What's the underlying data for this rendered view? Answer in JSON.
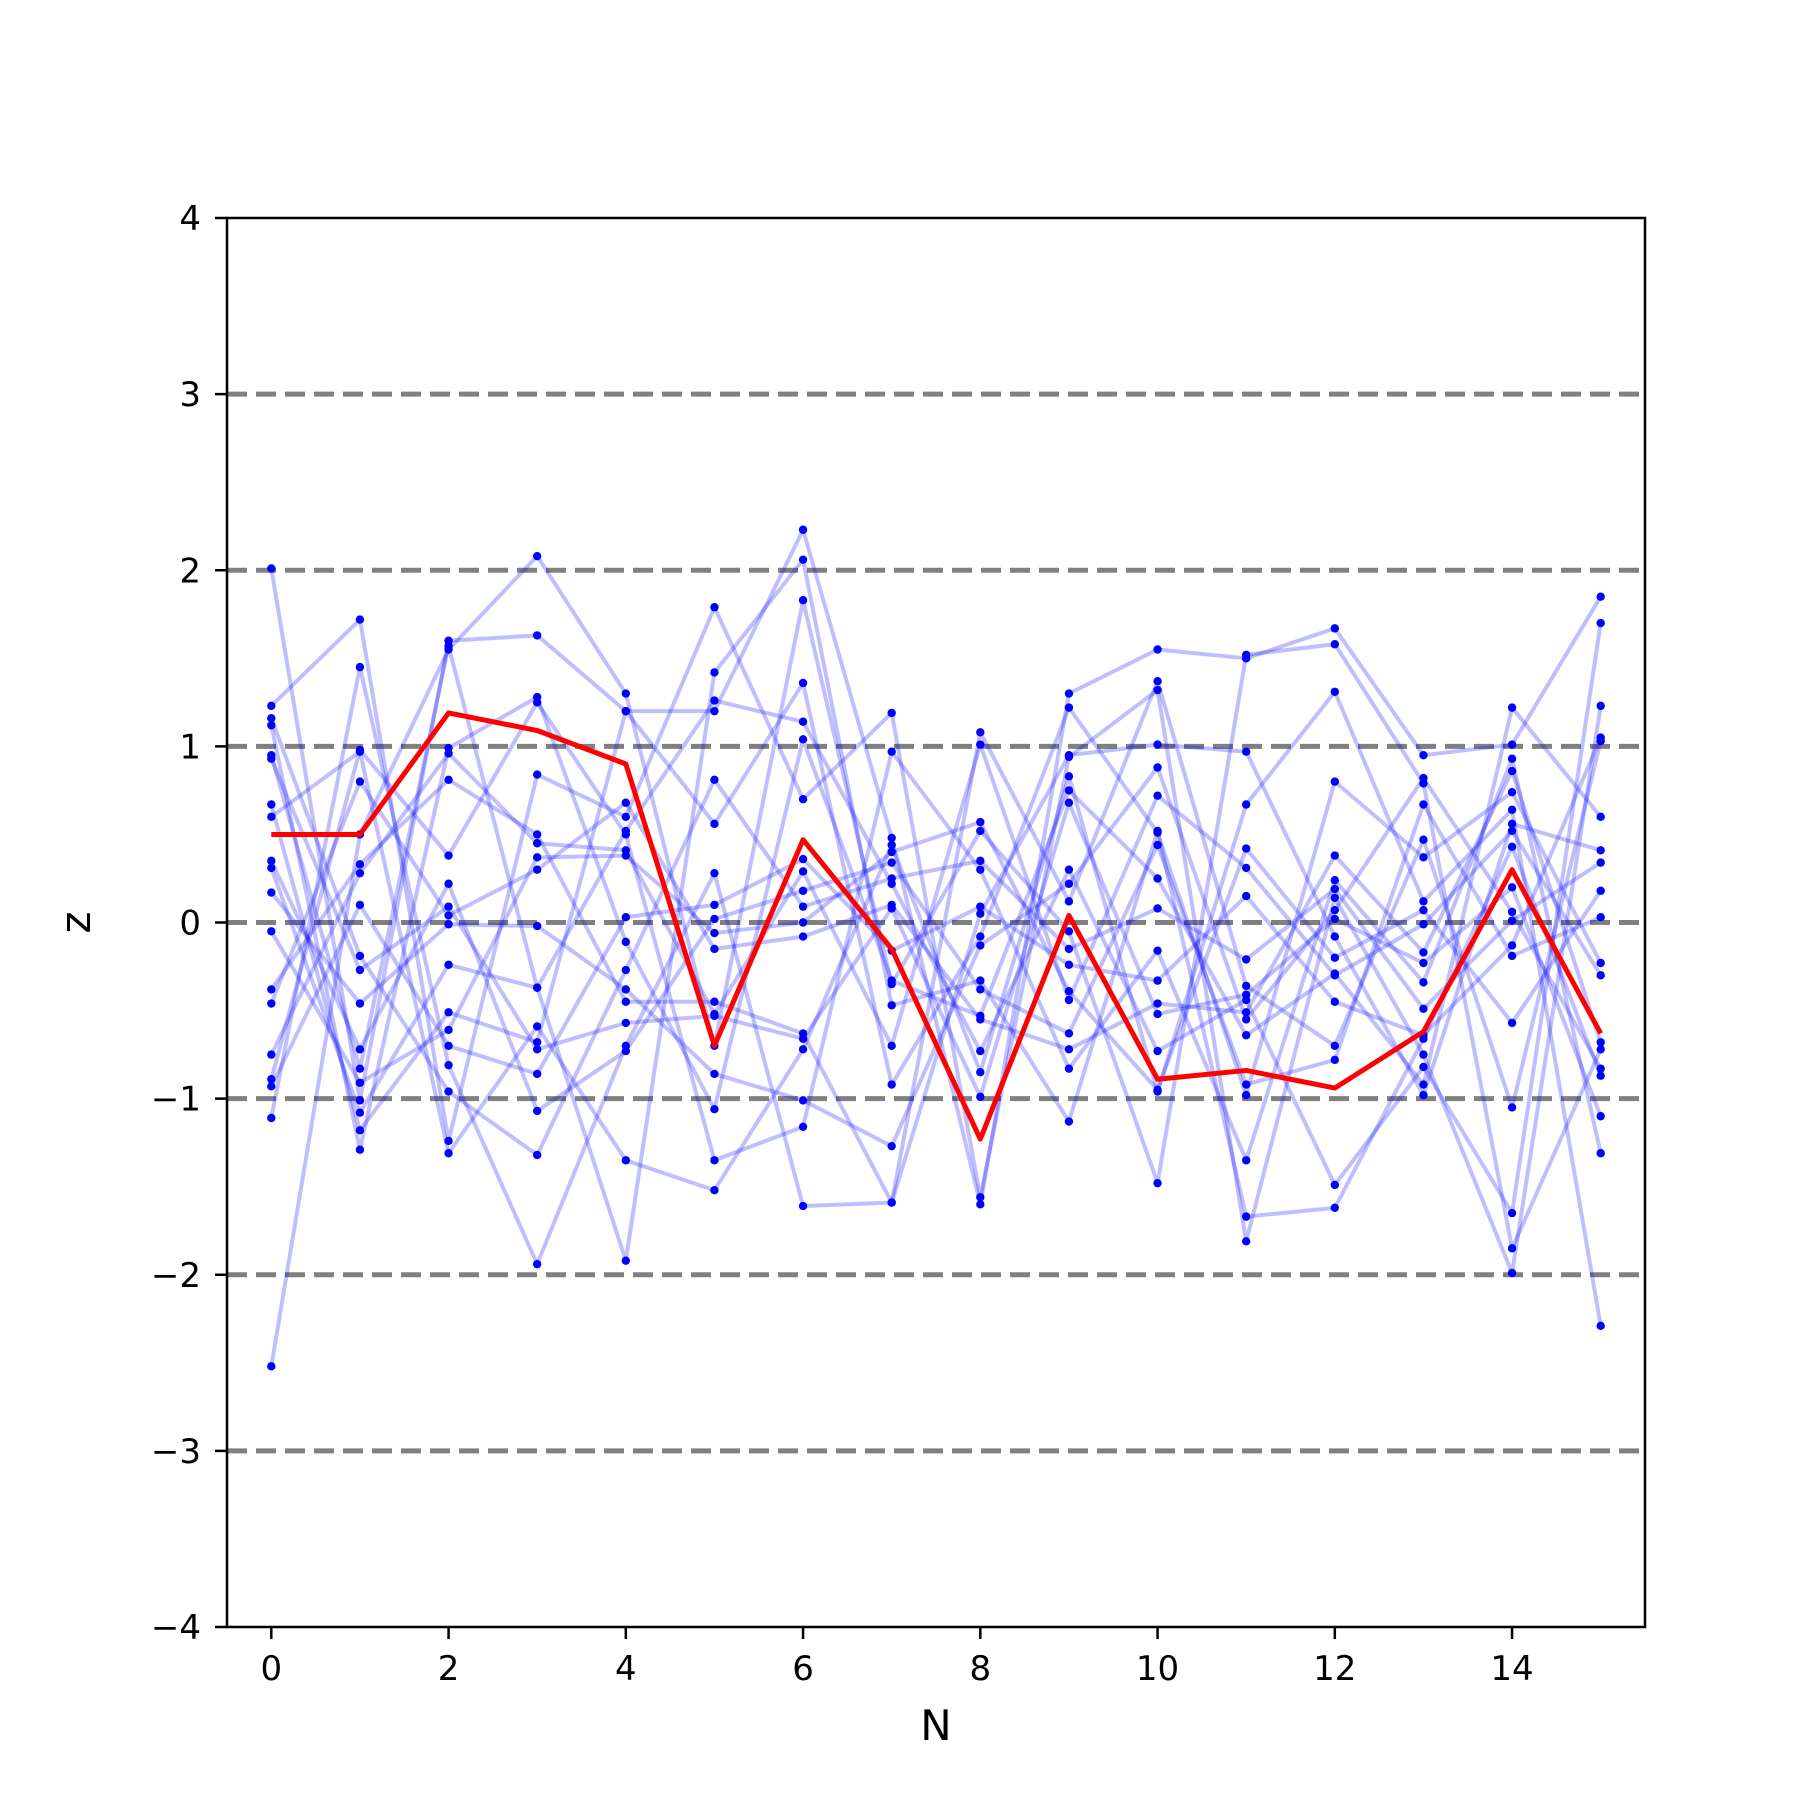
{
  "chart_data": {
    "type": "line",
    "title": "",
    "xlabel": "N",
    "ylabel": "z",
    "xlim": [
      -0.5,
      15.5
    ],
    "ylim": [
      -4,
      4
    ],
    "xticks": [
      0,
      2,
      4,
      6,
      8,
      10,
      12,
      14
    ],
    "xtick_labels": [
      "0",
      "2",
      "4",
      "6",
      "8",
      "10",
      "12",
      "14"
    ],
    "yticks": [
      -4,
      -3,
      -2,
      -1,
      0,
      1,
      2,
      3,
      4
    ],
    "ytick_labels": [
      "−4",
      "−3",
      "−2",
      "−1",
      "0",
      "1",
      "2",
      "3",
      "4"
    ],
    "reference_lines": [
      -3,
      -2,
      -1,
      0,
      1,
      2,
      3
    ],
    "grid": false,
    "colors": {
      "samples": "#0000ff",
      "mean": "#ff0000",
      "reference": "#808080"
    },
    "x": [
      0,
      1,
      2,
      3,
      4,
      5,
      6,
      7,
      8,
      9,
      10,
      11,
      12,
      13,
      14,
      15
    ],
    "series": [
      {
        "values": [
          0.5,
          0.5,
          1.19,
          1.09,
          0.9,
          -0.7,
          0.47,
          -0.15,
          -1.23,
          0.04,
          -0.89,
          -0.84,
          -0.94,
          -0.62,
          0.3,
          -0.63
        ]
      }
    ],
    "samples": [
      [
        2.01,
        -1.01,
        1.6,
        1.63,
        1.2,
        1.2,
        2.23,
        0.48,
        -1.6,
        1.3,
        1.55,
        1.5,
        1.67,
        0.95,
        1.01,
        1.85
      ],
      [
        -2.52,
        0.5,
        1.55,
        2.08,
        1.3,
        -0.7,
        1.83,
        -0.35,
        0.52,
        -0.05,
        -1.48,
        1.52,
        1.58,
        0.79,
        -1.85,
        -0.72
      ],
      [
        1.23,
        1.72,
        -1.24,
        0.84,
        0.6,
        1.79,
        0.7,
        1.19,
        -1.56,
        0.94,
        1.32,
        -1.81,
        0.14,
        -0.75,
        -1.99,
        1.23
      ],
      [
        -1.11,
        1.45,
        -0.81,
        -1.94,
        -0.7,
        0.28,
        -1.61,
        -1.59,
        1.08,
        0.12,
        1.37,
        -0.36,
        -0.7,
        0.47,
        -1.05,
        1.03
      ],
      [
        0.95,
        -0.83,
        1.57,
        -0.37,
        -1.92,
        1.42,
        2.06,
        -0.47,
        -0.33,
        -1.13,
        0.52,
        -1.67,
        -1.62,
        -0.66,
        0.43,
        -0.87
      ],
      [
        0.6,
        0.97,
        -1.31,
        -0.59,
        -1.35,
        -1.52,
        -0.72,
        0.44,
        -0.85,
        0.83,
        -0.96,
        0.67,
        1.31,
        0.12,
        0.64,
        -2.29
      ],
      [
        1.12,
        -1.29,
        0.99,
        1.28,
        -0.11,
        -1.06,
        1.04,
        -0.33,
        -0.53,
        0.75,
        0.25,
        -0.64,
        -0.29,
        -0.92,
        1.22,
        0.6
      ],
      [
        -0.89,
        0.98,
        0.38,
        1.25,
        0.5,
        -1.35,
        -1.16,
        0.97,
        0.3,
        -0.83,
        -0.16,
        -1.35,
        0.24,
        -0.34,
        0.93,
        -1.31
      ],
      [
        0.67,
        -1.18,
        -0.51,
        -0.68,
        1.2,
        0.56,
        1.36,
        -0.92,
        -0.08,
        1.22,
        0.51,
        -0.98,
        0.8,
        0.37,
        0.74,
        -0.23
      ],
      [
        -0.38,
        0.33,
        0.81,
        0.5,
        -0.45,
        -0.45,
        -0.63,
        -1.59,
        0.05,
        0.95,
        1.01,
        0.97,
        -0.08,
        -0.98,
        0.56,
        0.41
      ],
      [
        0.31,
        -1.08,
        -0.24,
        -0.37,
        0.52,
        1.26,
        1.14,
        0.22,
        -0.73,
        0.3,
        -0.73,
        -0.44,
        -1.49,
        -0.82,
        -1.65,
        1.7
      ],
      [
        -0.75,
        0.28,
        0.96,
        0.45,
        0.41,
        -0.52,
        0.29,
        -0.7,
        1.01,
        -0.44,
        0.72,
        0.31,
        -0.3,
        -0.01,
        0.52,
        -0.3
      ],
      [
        1.16,
        -0.19,
        -0.96,
        -1.32,
        -0.27,
        0.81,
        0.09,
        0.25,
        0.35,
        -0.15,
        0.08,
        -0.21,
        0.19,
        -0.49,
        0.01,
        0.34
      ],
      [
        -0.46,
        0.8,
        0.04,
        0.3,
        0.68,
        -0.15,
        -0.08,
        0.1,
        -0.55,
        -0.72,
        -0.46,
        -0.51,
        0.38,
        -0.17,
        0.86,
        -0.68
      ],
      [
        0.35,
        -0.72,
        0.22,
        -1.07,
        -0.73,
        0.02,
        0.18,
        0.34,
        -0.38,
        -0.63,
        0.44,
        -0.92,
        -0.78,
        0.67,
        -0.19,
        0.03
      ],
      [
        -0.93,
        0.1,
        -0.7,
        -0.86,
        0.03,
        0.1,
        0.36,
        -0.16,
        0.09,
        -0.24,
        -0.33,
        0.15,
        -0.45,
        -0.64,
        -0.13,
        1.05
      ],
      [
        0.17,
        -0.46,
        -0.01,
        -0.02,
        -0.38,
        -0.86,
        -1.01,
        -1.27,
        -0.13,
        0.22,
        0.88,
        -0.55,
        0.07,
        0.82,
        0.06,
        -0.83
      ],
      [
        -0.05,
        -0.91,
        -0.61,
        0.37,
        0.38,
        -0.06,
        0.0,
        0.4,
        0.57,
        -0.39,
        -0.95,
        0.42,
        -0.2,
        0.07,
        -0.57,
        0.18
      ],
      [
        0.93,
        -0.27,
        0.09,
        -0.72,
        -0.57,
        -0.53,
        -0.66,
        0.08,
        -0.99,
        0.68,
        -0.52,
        -0.41,
        0.02,
        -0.23,
        0.2,
        -1.1
      ]
    ]
  }
}
